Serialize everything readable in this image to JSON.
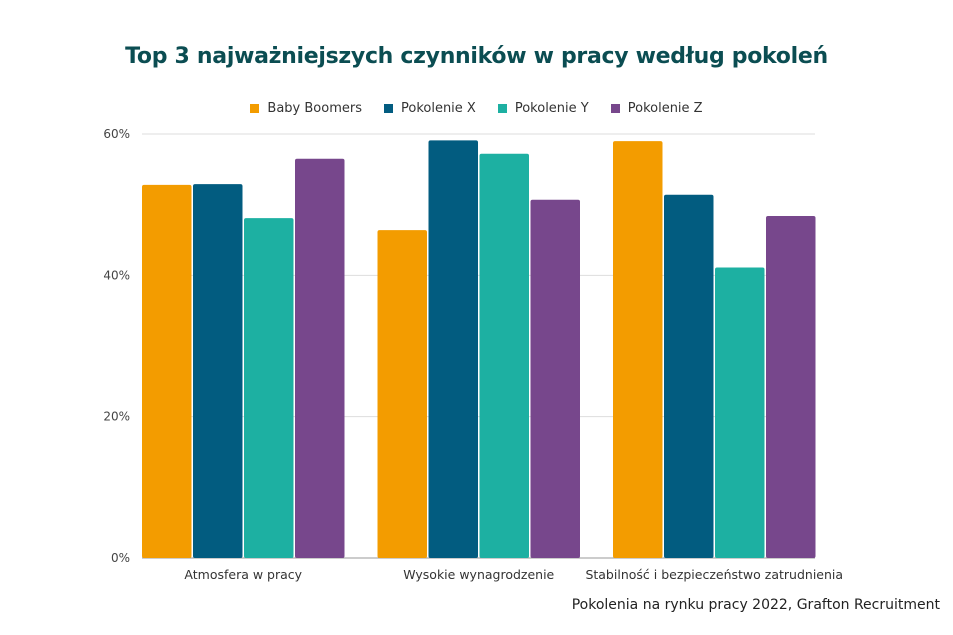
{
  "chart_data": {
    "type": "bar",
    "title": "Top 3 najważniejszych czynników w pracy według pokoleń",
    "categories": [
      "Atmosfera w pracy",
      "Wysokie wynagrodzenie",
      "Stabilność i bezpieczeństwo zatrudnienia"
    ],
    "series": [
      {
        "name": "Baby Boomers",
        "color": "#f39c00",
        "values": [
          52.8,
          46.4,
          59.0
        ]
      },
      {
        "name": "Pokolenie X",
        "color": "#025c80",
        "values": [
          52.9,
          59.1,
          51.4
        ]
      },
      {
        "name": "Pokolenie Y",
        "color": "#1db0a2",
        "values": [
          48.1,
          57.2,
          41.1
        ]
      },
      {
        "name": "Pokolenie Z",
        "color": "#77478c",
        "values": [
          56.5,
          50.7,
          48.4
        ]
      }
    ],
    "ylim": [
      0,
      60
    ],
    "yticks": [
      0,
      20,
      40,
      60
    ],
    "ytick_labels": [
      "0%",
      "20%",
      "40%",
      "60%"
    ],
    "xlabel": "",
    "ylabel": "",
    "grid": true,
    "legend_position": "top"
  },
  "source": "Pokolenia na rynku pracy 2022, Grafton Recruitment"
}
